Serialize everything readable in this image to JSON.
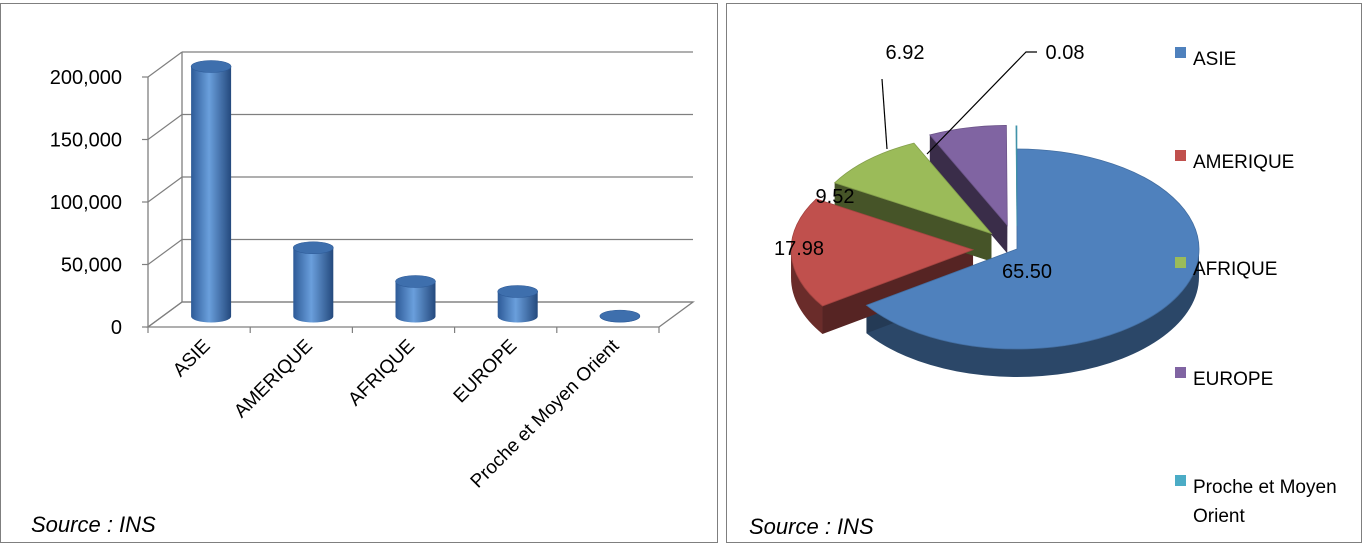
{
  "chart_data": [
    {
      "type": "bar",
      "categories": [
        "ASIE",
        "AMERIQUE",
        "AFRIQUE",
        "EUROPE",
        "Proche et Moyen Orient"
      ],
      "values": [
        200000,
        55000,
        28000,
        20000,
        300
      ],
      "ylim": [
        0,
        200000
      ],
      "yticks": [
        "0",
        "50,000",
        "100,000",
        "150,000",
        "200,000"
      ],
      "ytick_values": [
        0,
        50000,
        100000,
        150000,
        200000
      ],
      "grid": true,
      "color": "#4a7fc1",
      "source": "Source : INS"
    },
    {
      "type": "pie",
      "labels": [
        "ASIE",
        "AMERIQUE",
        "AFRIQUE",
        "EUROPE",
        "Proche et Moyen Orient"
      ],
      "values": [
        65.5,
        17.98,
        9.52,
        6.92,
        0.08
      ],
      "data_labels": [
        "65.50",
        "17.98",
        "9.52",
        "6.92",
        "0.08"
      ],
      "colors": [
        "#4f81bd",
        "#c0504d",
        "#9bbb59",
        "#8064a2",
        "#4bacc6"
      ],
      "legend_position": "right",
      "legend_labels": [
        "ASIE",
        "AMERIQUE",
        "AFRIQUE",
        "EUROPE",
        "Proche et Moyen",
        "Orient"
      ],
      "source": "Source : INS"
    }
  ]
}
